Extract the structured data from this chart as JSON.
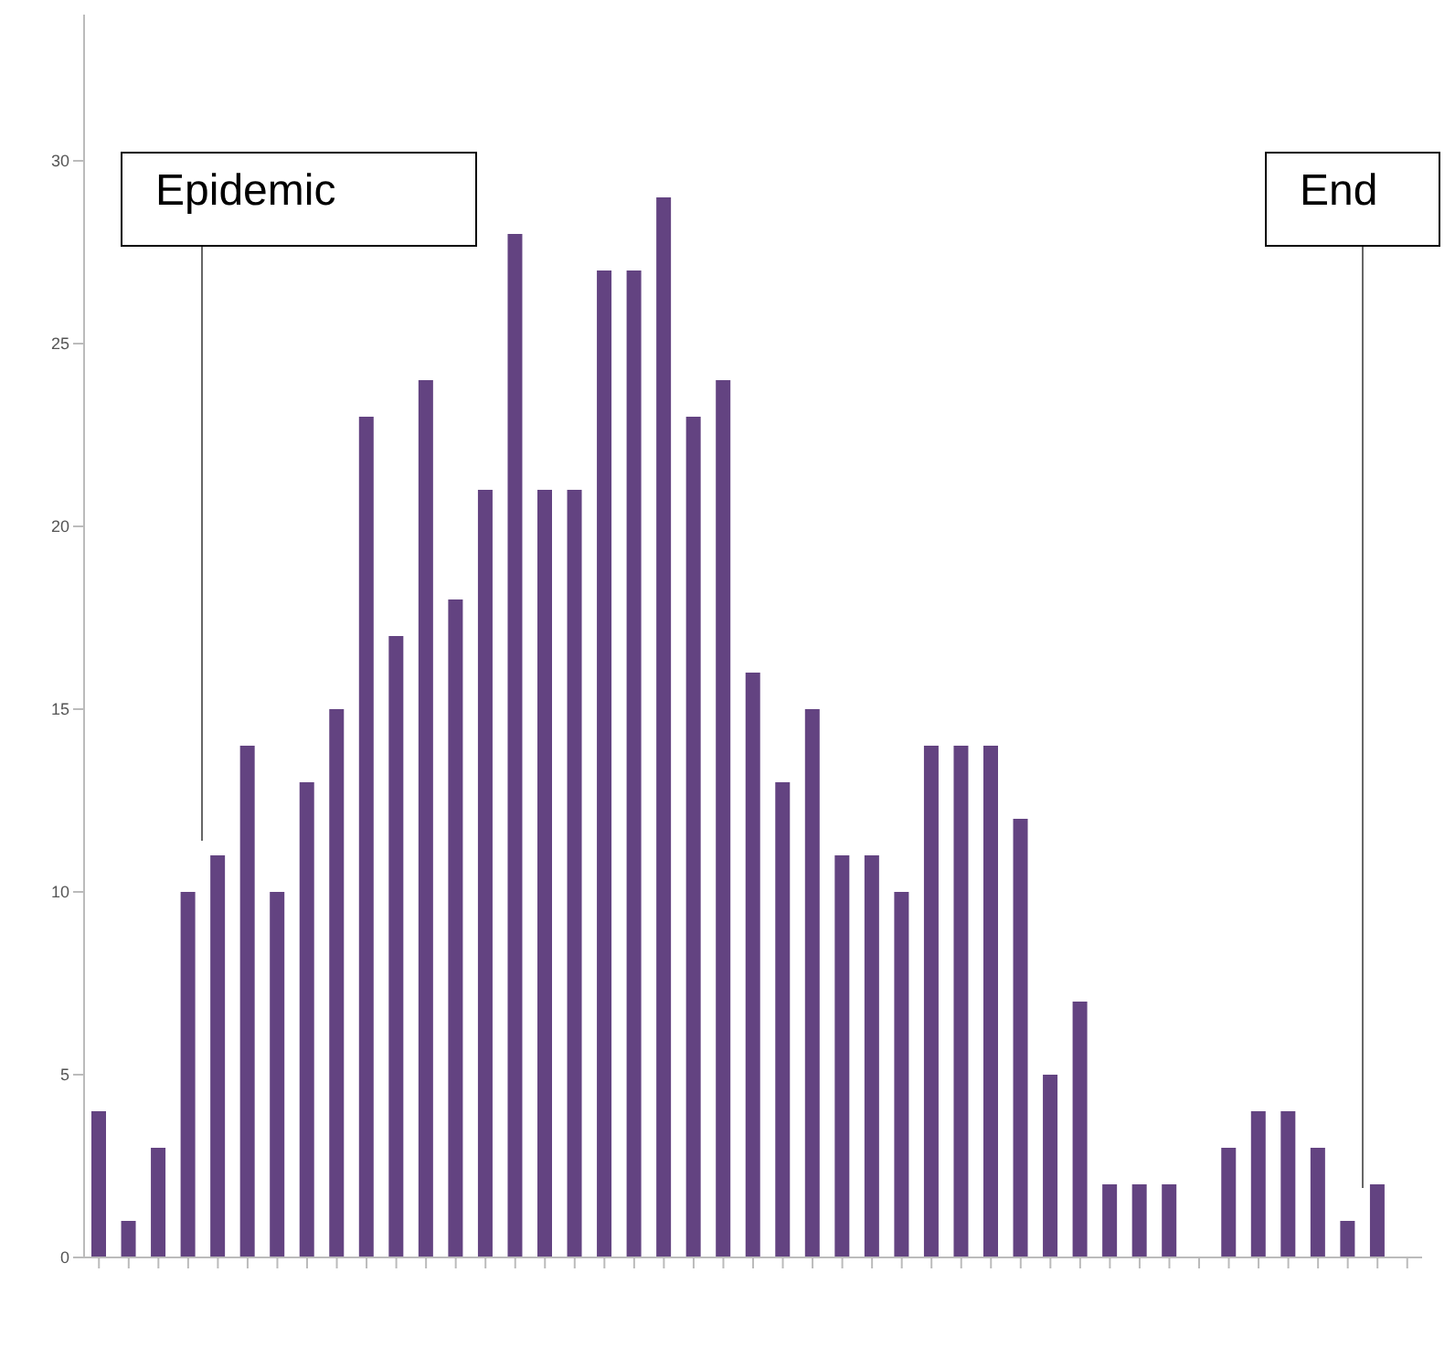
{
  "chart_data": {
    "type": "bar",
    "categories": [
      null,
      null,
      null,
      null,
      null,
      null,
      null,
      null,
      null,
      null,
      null,
      null,
      null,
      null,
      null,
      null,
      null,
      null,
      null,
      null,
      null,
      null,
      null,
      null,
      null,
      null,
      null,
      null,
      null,
      null,
      null,
      null,
      null,
      null,
      null,
      null,
      null,
      null,
      null,
      null,
      null,
      null,
      null,
      null,
      null
    ],
    "values": [
      4,
      1,
      3,
      10,
      11,
      14,
      10,
      13,
      15,
      23,
      17,
      24,
      18,
      21,
      28,
      21,
      21,
      27,
      27,
      29,
      23,
      24,
      16,
      13,
      15,
      11,
      11,
      10,
      14,
      14,
      14,
      12,
      5,
      7,
      2,
      2,
      2,
      0,
      3,
      4,
      4,
      3,
      1,
      2,
      0
    ],
    "color": "#634381",
    "ylim": [
      0,
      34
    ],
    "yticks": [
      0,
      5,
      10,
      15,
      20,
      25,
      30
    ],
    "annotations": [
      "Epidemic",
      "End"
    ]
  }
}
